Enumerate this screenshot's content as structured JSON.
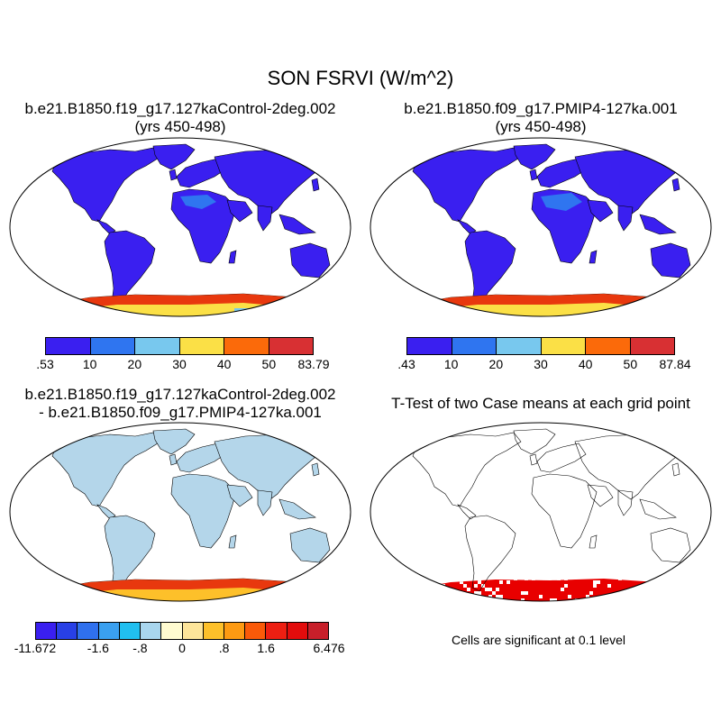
{
  "figure": {
    "title": "SON FSRVI (W/m^2)"
  },
  "panels": [
    {
      "title_line1": "b.e21.B1850.f19_g17.127kaControl-2deg.002",
      "title_line2": "(yrs 450-498)"
    },
    {
      "title_line1": "b.e21.B1850.f09_g17.PMIP4-127ka.001",
      "title_line2": "(yrs 450-498)"
    },
    {
      "title_line1": "b.e21.B1850.f19_g17.127kaControl-2deg.002",
      "title_line2": "- b.e21.B1850.f09_g17.PMIP4-127ka.001"
    },
    {
      "title_line1": "T-Test of two Case means at each grid point",
      "note": "Cells are significant at 0.1 level"
    }
  ],
  "colorbars": {
    "cb1": {
      "colors": [
        "#3a1ff0",
        "#2f75f0",
        "#78c8ee",
        "#fbe046",
        "#fb6a0a",
        "#d83033"
      ],
      "labels": [
        ".53",
        "10",
        "20",
        "30",
        "40",
        "50",
        "83.79"
      ]
    },
    "cb2": {
      "colors": [
        "#3a1ff0",
        "#2f75f0",
        "#78c8ee",
        "#fbe046",
        "#fb6a0a",
        "#d83033"
      ],
      "labels": [
        ".43",
        "10",
        "20",
        "30",
        "40",
        "50",
        "87.84"
      ]
    },
    "cb3": {
      "colors": [
        "#3a1ff0",
        "#2840e6",
        "#2f70ee",
        "#3aa0f0",
        "#21bff0",
        "#a9d6ee",
        "#fffbd0",
        "#fde59a",
        "#fdc02a",
        "#fd9a12",
        "#fa5a09",
        "#ed1f12",
        "#e20c0c",
        "#c81f2a"
      ],
      "labels": [
        "-11.672",
        "-1.6",
        "-.8",
        "0",
        ".8",
        "1.6",
        "6.476"
      ]
    }
  },
  "colors": {
    "land_base": "#3a1ff0",
    "diff_base": "#b4d6ea",
    "sig": "#e80000",
    "antarctic_hot": "#e8380e",
    "antarctic_warm": "#fbe046"
  }
}
